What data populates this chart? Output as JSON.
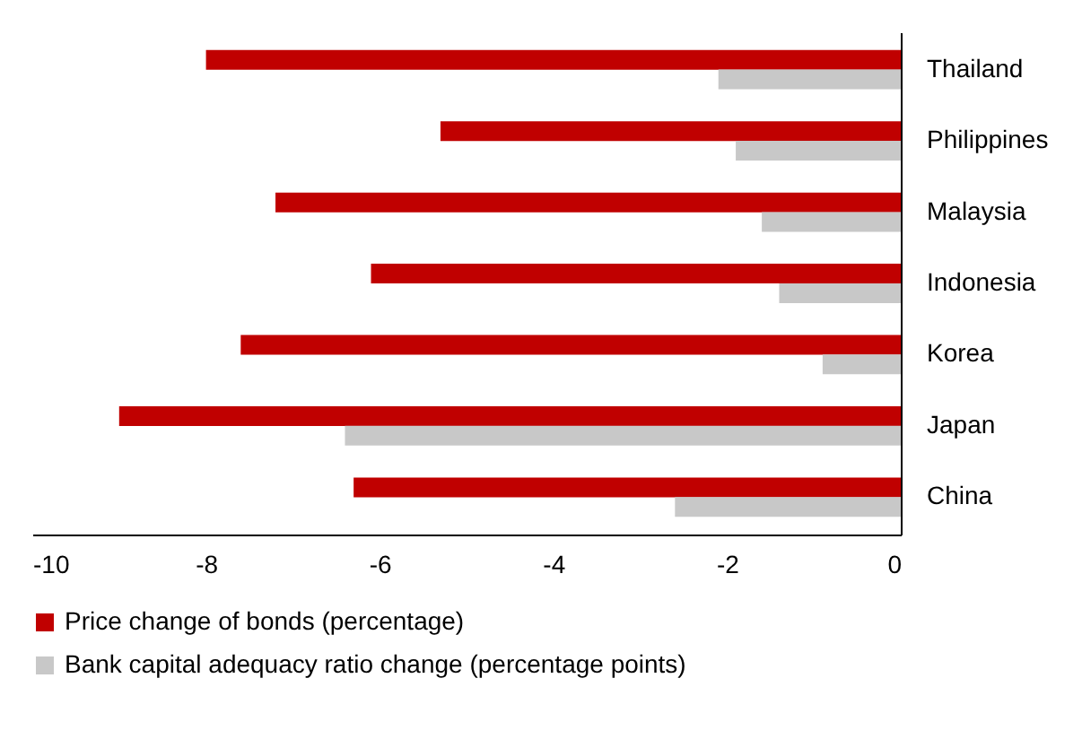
{
  "chart_data": {
    "type": "bar",
    "orientation": "horizontal",
    "categories": [
      "Thailand",
      "Philippines",
      "Malaysia",
      "Indonesia",
      "Korea",
      "Japan",
      "China"
    ],
    "series": [
      {
        "name": "Price change of bonds (percentage)",
        "color": "#c00000",
        "values": [
          -8.0,
          -5.3,
          -7.2,
          -6.1,
          -7.6,
          -9.0,
          -6.3
        ]
      },
      {
        "name": "Bank capital adequacy ratio change (percentage points)",
        "color": "#c8c8c8",
        "values": [
          -2.1,
          -1.9,
          -1.6,
          -1.4,
          -0.9,
          -6.4,
          -2.6
        ]
      }
    ],
    "xlim": [
      -10,
      0
    ],
    "xticks": [
      -10,
      -8,
      -6,
      -4,
      -2,
      0
    ],
    "grid": false,
    "legend": "bottom"
  }
}
